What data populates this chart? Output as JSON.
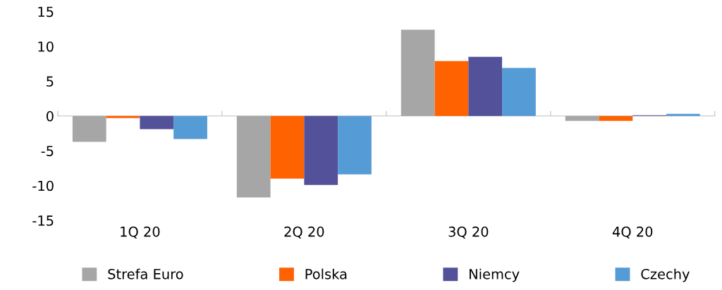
{
  "chart_data": {
    "type": "bar",
    "categories": [
      "1Q 20",
      "2Q 20",
      "3Q 20",
      "4Q 20"
    ],
    "series": [
      {
        "name": "Strefa Euro",
        "color": "#a6a6a6",
        "values": [
          -3.7,
          -11.7,
          12.4,
          -0.7
        ]
      },
      {
        "name": "Polska",
        "color": "#ff6200",
        "values": [
          -0.3,
          -9.0,
          7.9,
          -0.7
        ]
      },
      {
        "name": "Niemcy",
        "color": "#525199",
        "values": [
          -1.9,
          -9.9,
          8.5,
          0.1
        ]
      },
      {
        "name": "Czechy",
        "color": "#559bd5",
        "values": [
          -3.3,
          -8.4,
          6.9,
          0.3
        ]
      }
    ],
    "ylim": [
      -15,
      15
    ],
    "yticks": [
      -15,
      -10,
      -5,
      0,
      5,
      10,
      15
    ],
    "legend": "bottom"
  }
}
